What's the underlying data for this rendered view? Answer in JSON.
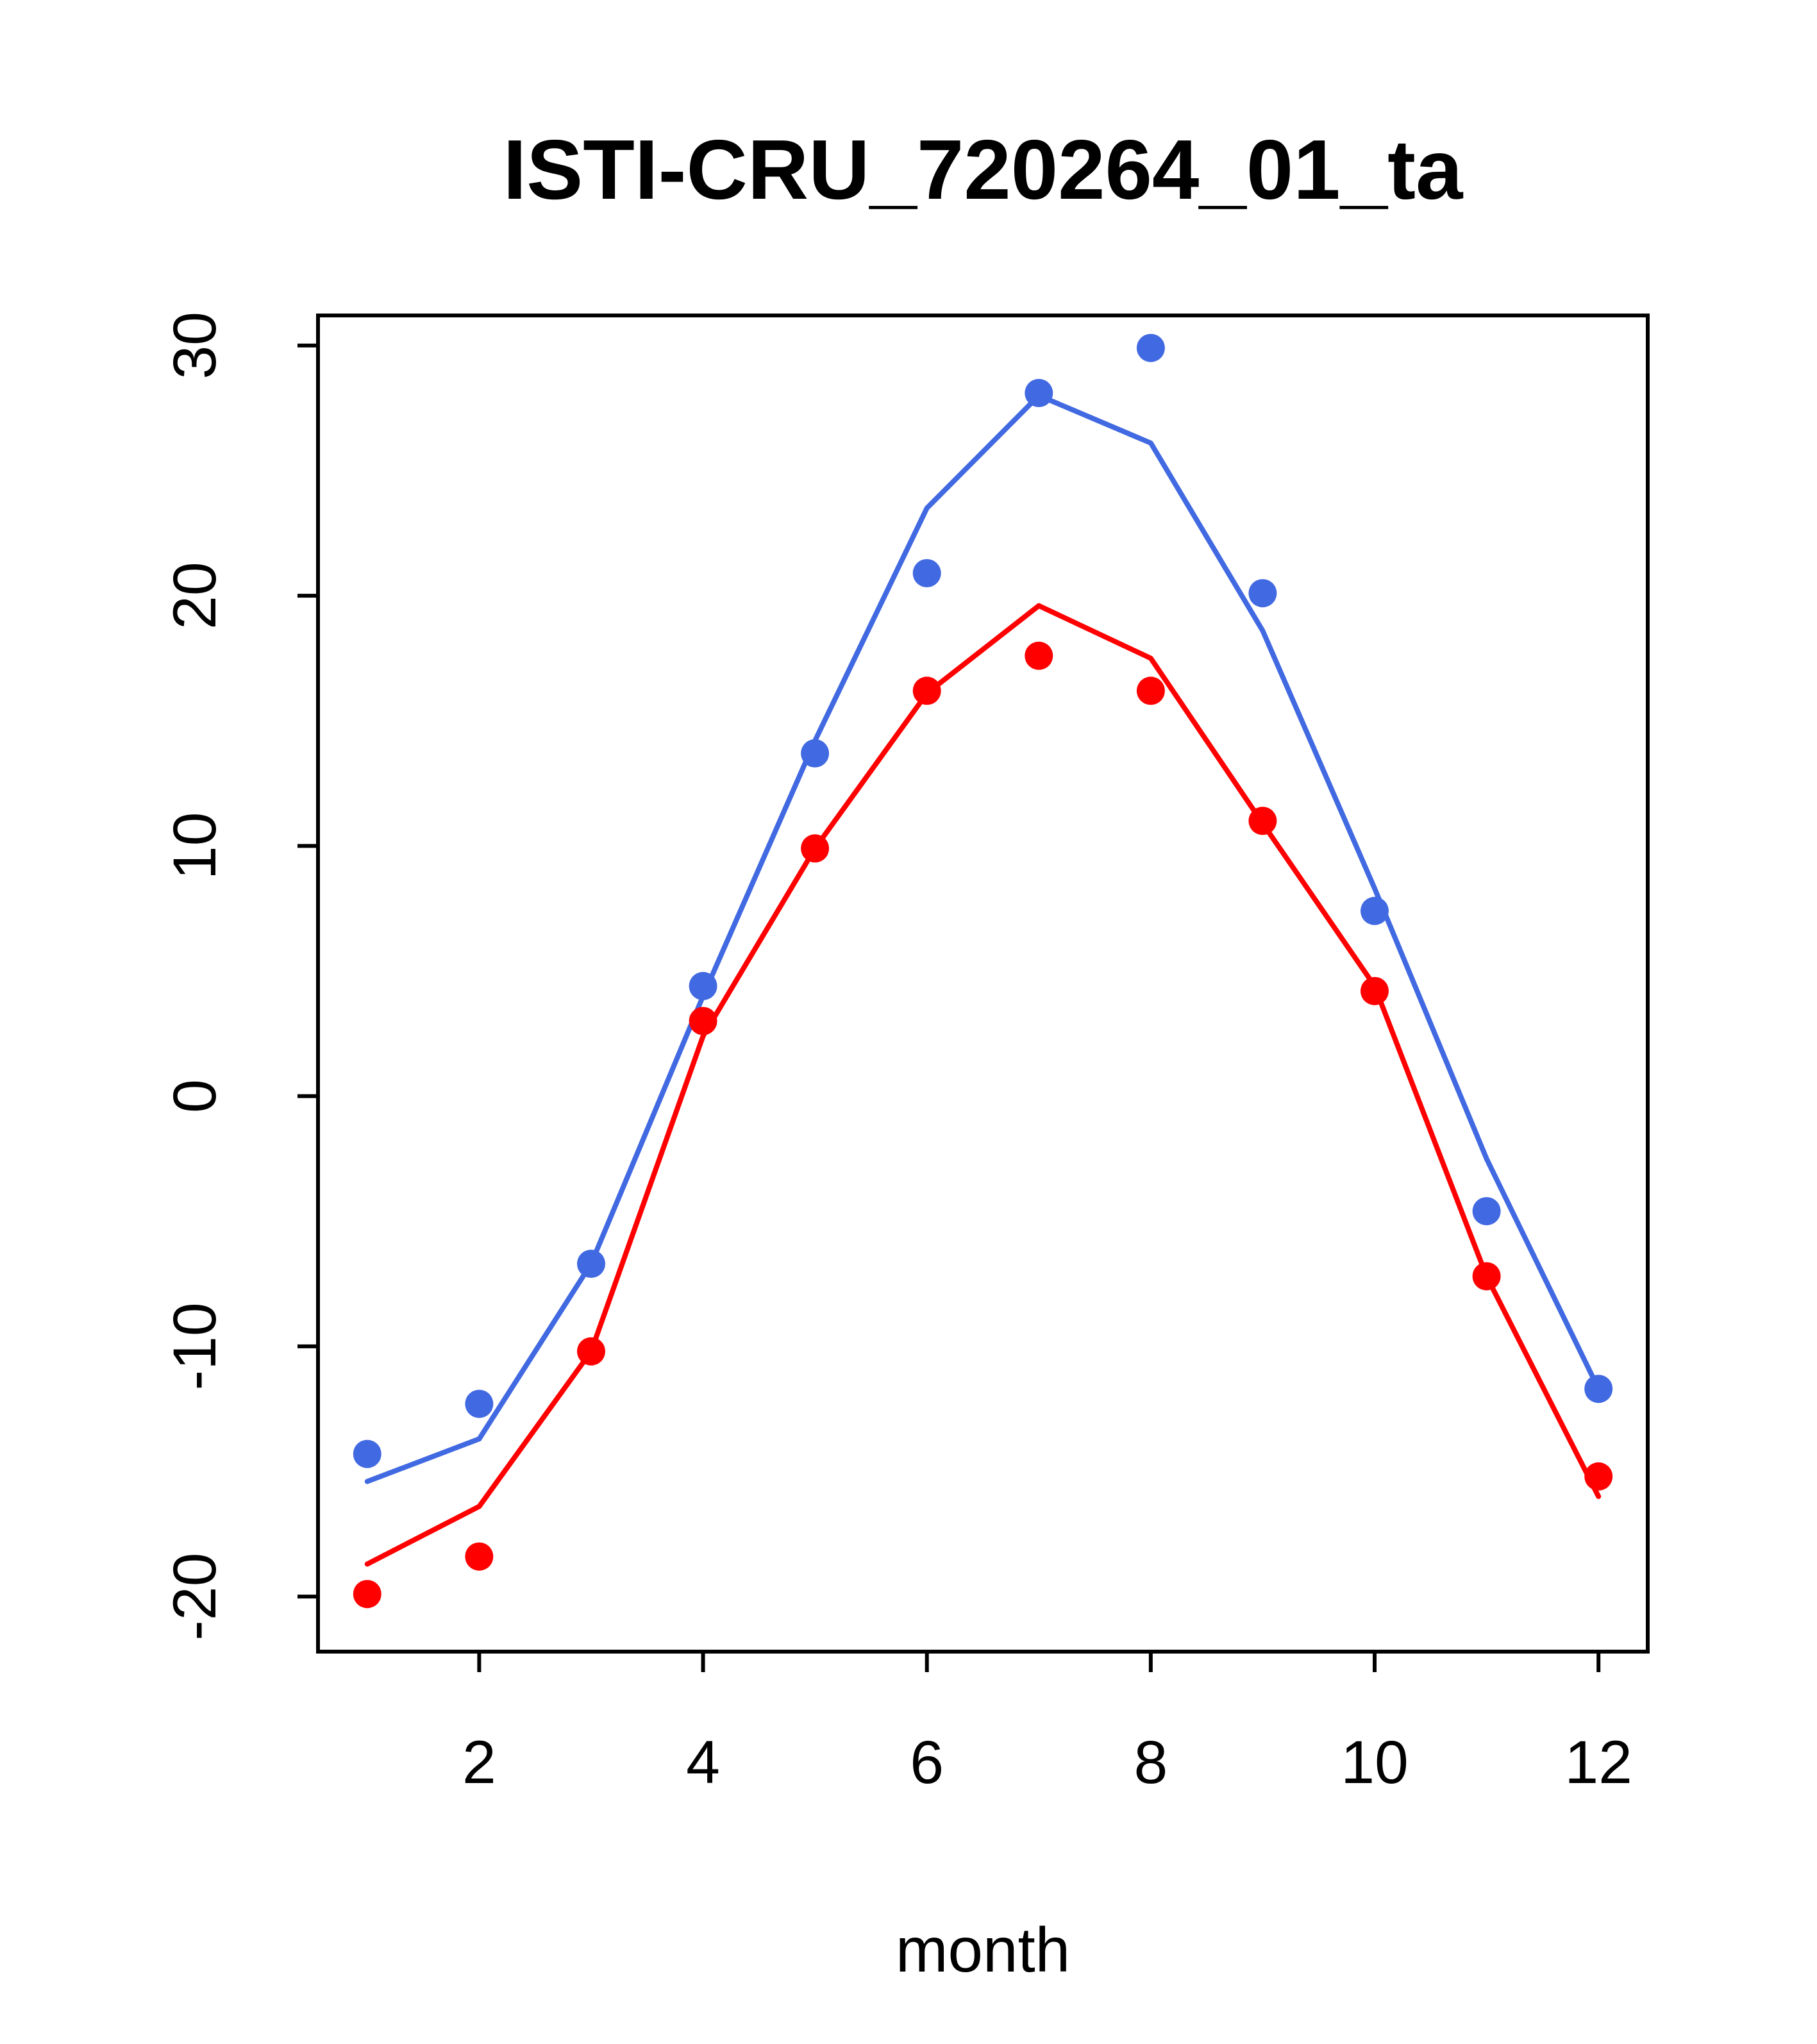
{
  "figure": {
    "background_color": "#FFFFFF",
    "axis_color": "#000000"
  },
  "chart_data": {
    "type": "line",
    "title": "ISTI-CRU_720264_01_ta",
    "xlabel": "month",
    "ylabel": "",
    "grid": false,
    "legend_position": "none",
    "xlim": [
      0.56,
      12.44
    ],
    "ylim": [
      -22.2,
      31.2
    ],
    "x_ticks": [
      2,
      4,
      6,
      8,
      10,
      12
    ],
    "y_ticks": [
      -20,
      -10,
      0,
      10,
      20,
      30
    ],
    "x": [
      1,
      2,
      3,
      4,
      5,
      6,
      7,
      8,
      9,
      10,
      11,
      12
    ],
    "series": [
      {
        "name": "blue-fitted-line",
        "style": "line",
        "color": "#4169E1",
        "values": [
          -15.4,
          -13.7,
          -6.7,
          4.0,
          14.2,
          23.5,
          28.0,
          26.1,
          18.6,
          8.3,
          -2.5,
          -11.7
        ]
      },
      {
        "name": "blue-observed-points",
        "style": "points",
        "color": "#4169E1",
        "values": [
          -14.3,
          -12.3,
          -6.7,
          4.4,
          13.7,
          20.9,
          28.1,
          29.9,
          20.1,
          7.4,
          -4.6,
          -11.7
        ]
      },
      {
        "name": "red-fitted-line",
        "style": "line",
        "color": "#FF0000",
        "values": [
          -18.7,
          -16.4,
          -10.2,
          2.4,
          9.9,
          16.1,
          19.6,
          17.5,
          10.9,
          4.4,
          -7.2,
          -16.0
        ]
      },
      {
        "name": "red-observed-points",
        "style": "points",
        "color": "#FF0000",
        "values": [
          -19.9,
          -18.4,
          -10.2,
          3.0,
          9.9,
          16.2,
          17.6,
          16.2,
          11.0,
          4.2,
          -7.2,
          -15.2
        ]
      }
    ]
  }
}
